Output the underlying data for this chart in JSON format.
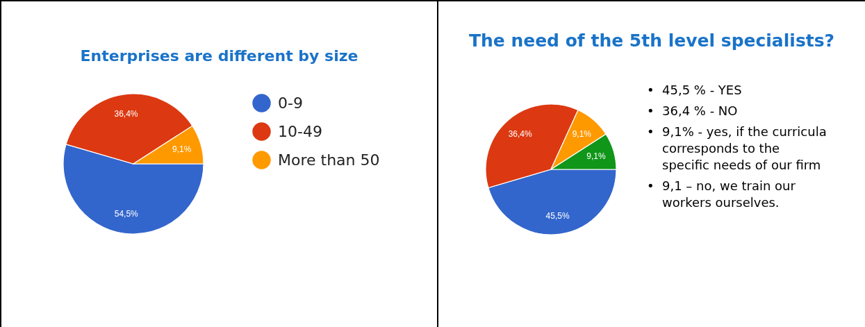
{
  "chart_data": [
    {
      "type": "pie",
      "title": "Enterprises are different by size",
      "categories": [
        "0-9",
        "10-49",
        "More than 50"
      ],
      "values": [
        54.5,
        36.4,
        9.1
      ],
      "colors": [
        "#3366cc",
        "#dc3912",
        "#ff9900"
      ],
      "value_labels": [
        "54,5%",
        "36,4%",
        "9,1%"
      ],
      "legend": "right"
    },
    {
      "type": "pie",
      "title": "The need of the 5th level specialists?",
      "categories": [
        null,
        null,
        null,
        null
      ],
      "values": [
        45.5,
        36.4,
        9.1,
        9.1
      ],
      "colors": [
        "#3366cc",
        "#dc3912",
        "#ff9900",
        "#109618"
      ],
      "value_labels": [
        "45,5%",
        "36,4%",
        "9,1%",
        "9,1%"
      ],
      "annotations": [
        "• 45,5 % - YES",
        "• 36,4 % - NO",
        "• 9,1% - yes, if the curricula corresponds to the specific needs of our firm",
        "• 9,1 – no, we train our workers ourselves."
      ]
    }
  ]
}
